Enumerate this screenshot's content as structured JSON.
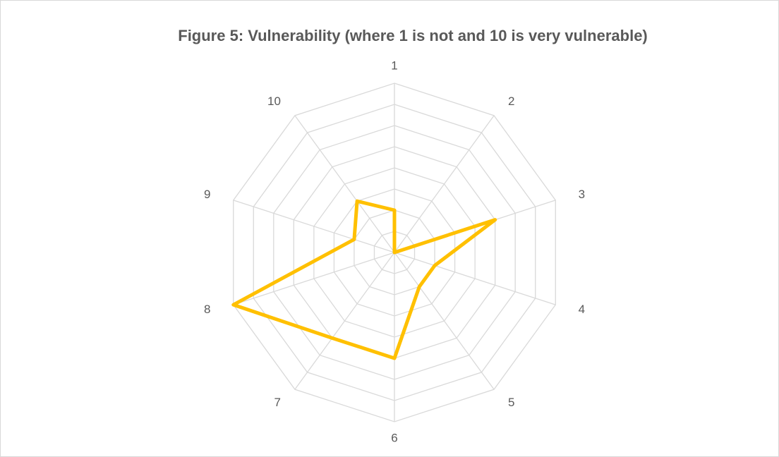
{
  "chart_data": {
    "type": "radar",
    "title": "Figure 5: Vulnerability (where 1 is not and 10 is very vulnerable)",
    "categories": [
      "1",
      "2",
      "3",
      "4",
      "5",
      "6",
      "7",
      "8",
      "9",
      "10"
    ],
    "series": [
      {
        "name": "Vulnerability",
        "color": "#ffc000",
        "values": [
          2,
          0,
          5,
          2,
          2,
          5,
          5,
          8,
          2,
          3
        ]
      }
    ],
    "rlim": [
      0,
      8
    ],
    "rticks": [
      1,
      2,
      3,
      4,
      5,
      6,
      7,
      8
    ],
    "grid": true
  }
}
